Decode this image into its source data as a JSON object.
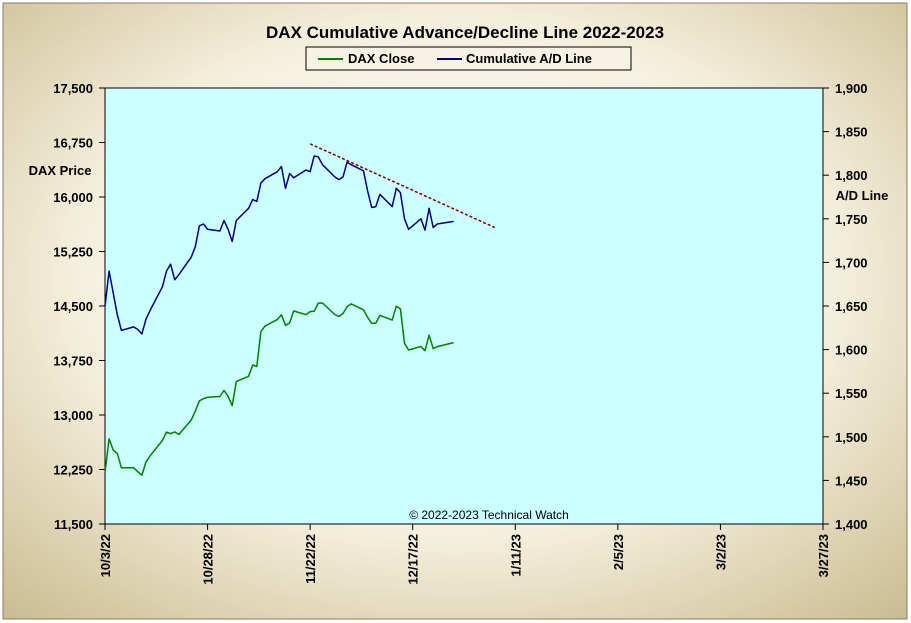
{
  "chart_data": {
    "type": "line",
    "title": "DAX Cumulative  Advance/Decline  Line  2022-2023",
    "copyright": "© 2022-2023  Technical  Watch",
    "left_axis_label": "DAX Price",
    "right_axis_label": "A/D Line",
    "x_ticks": [
      "10/3/22",
      "10/28/22",
      "11/22/22",
      "12/17/22",
      "1/11/23",
      "2/5/23",
      "3/2/23",
      "3/27/23"
    ],
    "x_range": [
      "2022-10-03",
      "2023-03-27"
    ],
    "y_left_ticks": [
      "11,500",
      "12,250",
      "13,000",
      "13,750",
      "14,500",
      "15,250",
      "16,000",
      "16,750",
      "17,500"
    ],
    "y_left_range": [
      11500,
      17500
    ],
    "y_right_ticks": [
      "1,400",
      "1,450",
      "1,500",
      "1,550",
      "1,600",
      "1,650",
      "1,700",
      "1,750",
      "1,800",
      "1,850",
      "1,900"
    ],
    "y_right_range": [
      1400,
      1900
    ],
    "grid": false,
    "legend_position": "top-center",
    "colors": {
      "plot_bg": "#CCFFFF",
      "frame_bg": "#E2D8B8",
      "dax": "#008000",
      "ad": "#000080",
      "trend": "#800000"
    },
    "series": [
      {
        "name": "DAX Close",
        "axis": "left",
        "points": [
          [
            "2022-10-03",
            12209
          ],
          [
            "2022-10-04",
            12671
          ],
          [
            "2022-10-05",
            12518
          ],
          [
            "2022-10-06",
            12471
          ],
          [
            "2022-10-07",
            12273
          ],
          [
            "2022-10-10",
            12273
          ],
          [
            "2022-10-11",
            12220
          ],
          [
            "2022-10-12",
            12172
          ],
          [
            "2022-10-13",
            12355
          ],
          [
            "2022-10-14",
            12438
          ],
          [
            "2022-10-17",
            12649
          ],
          [
            "2022-10-18",
            12765
          ],
          [
            "2022-10-19",
            12742
          ],
          [
            "2022-10-20",
            12767
          ],
          [
            "2022-10-21",
            12731
          ],
          [
            "2022-10-24",
            12931
          ],
          [
            "2022-10-25",
            13052
          ],
          [
            "2022-10-26",
            13195
          ],
          [
            "2022-10-27",
            13225
          ],
          [
            "2022-10-28",
            13243
          ],
          [
            "2022-10-31",
            13254
          ],
          [
            "2022-11-01",
            13339
          ],
          [
            "2022-11-02",
            13257
          ],
          [
            "2022-11-03",
            13130
          ],
          [
            "2022-11-04",
            13460
          ],
          [
            "2022-11-07",
            13533
          ],
          [
            "2022-11-08",
            13688
          ],
          [
            "2022-11-09",
            13667
          ],
          [
            "2022-11-10",
            14146
          ],
          [
            "2022-11-11",
            14224
          ],
          [
            "2022-11-14",
            14313
          ],
          [
            "2022-11-15",
            14379
          ],
          [
            "2022-11-16",
            14234
          ],
          [
            "2022-11-17",
            14266
          ],
          [
            "2022-11-18",
            14431
          ],
          [
            "2022-11-21",
            14380
          ],
          [
            "2022-11-22",
            14423
          ],
          [
            "2022-11-23",
            14428
          ],
          [
            "2022-11-24",
            14540
          ],
          [
            "2022-11-25",
            14541
          ],
          [
            "2022-11-28",
            14383
          ],
          [
            "2022-11-29",
            14356
          ],
          [
            "2022-11-30",
            14397
          ],
          [
            "2022-12-01",
            14490
          ],
          [
            "2022-12-02",
            14529
          ],
          [
            "2022-12-05",
            14448
          ],
          [
            "2022-12-06",
            14344
          ],
          [
            "2022-12-07",
            14261
          ],
          [
            "2022-12-08",
            14264
          ],
          [
            "2022-12-09",
            14370
          ],
          [
            "2022-12-12",
            14306
          ],
          [
            "2022-12-13",
            14497
          ],
          [
            "2022-12-14",
            14460
          ],
          [
            "2022-12-15",
            13987
          ],
          [
            "2022-12-16",
            13894
          ],
          [
            "2022-12-19",
            13943
          ],
          [
            "2022-12-20",
            13885
          ],
          [
            "2022-12-21",
            14098
          ],
          [
            "2022-12-22",
            13914
          ],
          [
            "2022-12-23",
            13941
          ],
          [
            "2022-12-27",
            13996
          ]
        ]
      },
      {
        "name": "Cumulative A/D Line",
        "axis": "right",
        "points": [
          [
            "2022-10-03",
            1650
          ],
          [
            "2022-10-04",
            1690
          ],
          [
            "2022-10-05",
            1665
          ],
          [
            "2022-10-06",
            1640
          ],
          [
            "2022-10-07",
            1622
          ],
          [
            "2022-10-10",
            1626
          ],
          [
            "2022-10-11",
            1623
          ],
          [
            "2022-10-12",
            1618
          ],
          [
            "2022-10-13",
            1635
          ],
          [
            "2022-10-14",
            1645
          ],
          [
            "2022-10-17",
            1672
          ],
          [
            "2022-10-18",
            1690
          ],
          [
            "2022-10-19",
            1698
          ],
          [
            "2022-10-20",
            1680
          ],
          [
            "2022-10-21",
            1686
          ],
          [
            "2022-10-24",
            1706
          ],
          [
            "2022-10-25",
            1718
          ],
          [
            "2022-10-26",
            1742
          ],
          [
            "2022-10-27",
            1744
          ],
          [
            "2022-10-28",
            1738
          ],
          [
            "2022-10-31",
            1736
          ],
          [
            "2022-11-01",
            1748
          ],
          [
            "2022-11-02",
            1738
          ],
          [
            "2022-11-03",
            1724
          ],
          [
            "2022-11-04",
            1748
          ],
          [
            "2022-11-07",
            1762
          ],
          [
            "2022-11-08",
            1772
          ],
          [
            "2022-11-09",
            1770
          ],
          [
            "2022-11-10",
            1791
          ],
          [
            "2022-11-11",
            1796
          ],
          [
            "2022-11-14",
            1804
          ],
          [
            "2022-11-15",
            1810
          ],
          [
            "2022-11-16",
            1785
          ],
          [
            "2022-11-17",
            1802
          ],
          [
            "2022-11-18",
            1797
          ],
          [
            "2022-11-21",
            1806
          ],
          [
            "2022-11-22",
            1804
          ],
          [
            "2022-11-23",
            1822
          ],
          [
            "2022-11-24",
            1821
          ],
          [
            "2022-11-25",
            1812
          ],
          [
            "2022-11-28",
            1798
          ],
          [
            "2022-11-29",
            1795
          ],
          [
            "2022-11-30",
            1798
          ],
          [
            "2022-12-01",
            1815
          ],
          [
            "2022-12-02",
            1812
          ],
          [
            "2022-12-05",
            1805
          ],
          [
            "2022-12-06",
            1782
          ],
          [
            "2022-12-07",
            1763
          ],
          [
            "2022-12-08",
            1764
          ],
          [
            "2022-12-09",
            1778
          ],
          [
            "2022-12-12",
            1764
          ],
          [
            "2022-12-13",
            1785
          ],
          [
            "2022-12-14",
            1780
          ],
          [
            "2022-12-15",
            1750
          ],
          [
            "2022-12-16",
            1738
          ],
          [
            "2022-12-19",
            1750
          ],
          [
            "2022-12-20",
            1737
          ],
          [
            "2022-12-21",
            1762
          ],
          [
            "2022-12-22",
            1740
          ],
          [
            "2022-12-23",
            1744
          ],
          [
            "2022-12-27",
            1747
          ]
        ]
      }
    ],
    "trendline": {
      "axis": "right",
      "style": "dashed",
      "points": [
        [
          "2022-11-22",
          1836
        ],
        [
          "2023-01-06",
          1740
        ]
      ]
    }
  }
}
